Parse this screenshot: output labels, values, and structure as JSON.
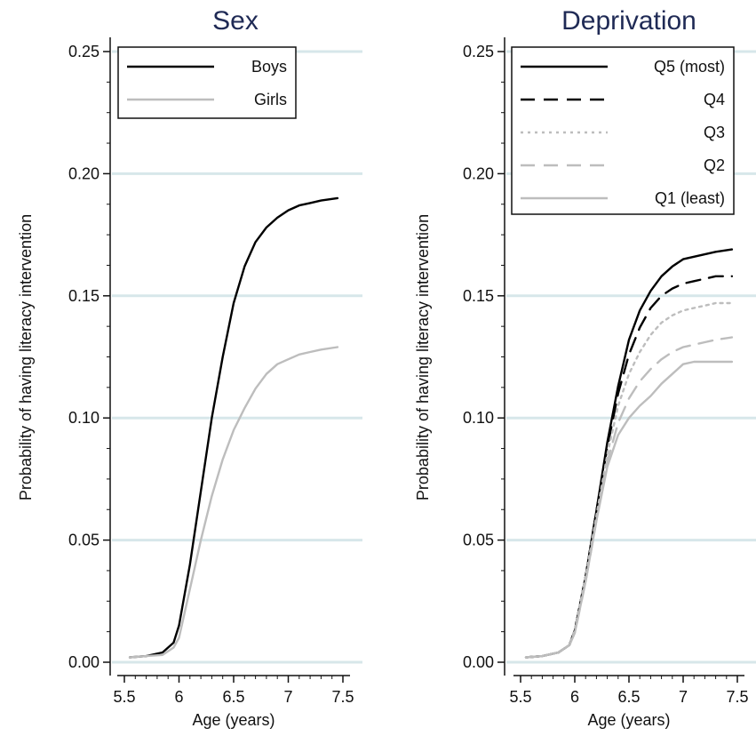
{
  "colors": {
    "title": "#1f2a55",
    "grid": "#d7e7ea",
    "axis": "#111111",
    "black": "#000000",
    "gray": "#bdbdbd"
  },
  "chart_data": [
    {
      "type": "line",
      "title": "Sex",
      "xlabel": "Age (years)",
      "ylabel": "Probability of having literacy intervention",
      "xlim": [
        5.5,
        7.5
      ],
      "ylim": [
        0,
        0.25
      ],
      "xticks": [
        "5.5",
        "6",
        "6.5",
        "7",
        "7.5"
      ],
      "yticks": [
        "0.00",
        "0.05",
        "0.10",
        "0.15",
        "0.20",
        "0.25"
      ],
      "grid": true,
      "legend": "top-left",
      "series": [
        {
          "name": "Boys",
          "color": "#000000",
          "style": "solid",
          "x": [
            5.55,
            5.7,
            5.85,
            5.95,
            6.0,
            6.1,
            6.2,
            6.3,
            6.4,
            6.5,
            6.6,
            6.7,
            6.8,
            6.9,
            7.0,
            7.1,
            7.2,
            7.3,
            7.45
          ],
          "y": [
            0.002,
            0.0025,
            0.004,
            0.008,
            0.015,
            0.04,
            0.07,
            0.1,
            0.125,
            0.147,
            0.162,
            0.172,
            0.178,
            0.182,
            0.185,
            0.187,
            0.188,
            0.189,
            0.19
          ]
        },
        {
          "name": "Girls",
          "color": "#bdbdbd",
          "style": "solid",
          "x": [
            5.55,
            5.7,
            5.85,
            5.95,
            6.0,
            6.1,
            6.2,
            6.3,
            6.4,
            6.5,
            6.6,
            6.7,
            6.8,
            6.9,
            7.0,
            7.1,
            7.2,
            7.3,
            7.45
          ],
          "y": [
            0.002,
            0.0025,
            0.003,
            0.006,
            0.01,
            0.03,
            0.05,
            0.068,
            0.083,
            0.095,
            0.104,
            0.112,
            0.118,
            0.122,
            0.124,
            0.126,
            0.127,
            0.128,
            0.129
          ]
        }
      ]
    },
    {
      "type": "line",
      "title": "Deprivation",
      "xlabel": "Age (years)",
      "ylabel": "Probability of having literacy intervention",
      "xlim": [
        5.5,
        7.5
      ],
      "ylim": [
        0,
        0.25
      ],
      "xticks": [
        "5.5",
        "6",
        "6.5",
        "7",
        "7.5"
      ],
      "yticks": [
        "0.00",
        "0.05",
        "0.10",
        "0.15",
        "0.20",
        "0.25"
      ],
      "grid": true,
      "legend": "top-right",
      "series": [
        {
          "name": "Q5 (most)",
          "color": "#000000",
          "style": "solid",
          "x": [
            5.55,
            5.7,
            5.85,
            5.95,
            6.0,
            6.1,
            6.2,
            6.3,
            6.4,
            6.5,
            6.6,
            6.7,
            6.8,
            6.9,
            7.0,
            7.1,
            7.2,
            7.3,
            7.45
          ],
          "y": [
            0.002,
            0.0025,
            0.004,
            0.007,
            0.013,
            0.035,
            0.062,
            0.09,
            0.113,
            0.132,
            0.144,
            0.152,
            0.158,
            0.162,
            0.165,
            0.166,
            0.167,
            0.168,
            0.169
          ]
        },
        {
          "name": "Q4",
          "color": "#000000",
          "style": "dash",
          "x": [
            5.55,
            5.7,
            5.85,
            5.95,
            6.0,
            6.1,
            6.2,
            6.3,
            6.4,
            6.5,
            6.6,
            6.7,
            6.8,
            6.9,
            7.0,
            7.1,
            7.2,
            7.3,
            7.45
          ],
          "y": [
            0.002,
            0.0025,
            0.004,
            0.007,
            0.013,
            0.035,
            0.062,
            0.088,
            0.11,
            0.126,
            0.137,
            0.145,
            0.15,
            0.153,
            0.155,
            0.156,
            0.157,
            0.158,
            0.158
          ]
        },
        {
          "name": "Q3",
          "color": "#bdbdbd",
          "style": "dot",
          "x": [
            5.55,
            5.7,
            5.85,
            5.95,
            6.0,
            6.1,
            6.2,
            6.3,
            6.4,
            6.5,
            6.6,
            6.7,
            6.8,
            6.9,
            7.0,
            7.1,
            7.2,
            7.3,
            7.45
          ],
          "y": [
            0.002,
            0.0025,
            0.004,
            0.007,
            0.013,
            0.035,
            0.06,
            0.085,
            0.105,
            0.118,
            0.127,
            0.134,
            0.139,
            0.142,
            0.144,
            0.145,
            0.146,
            0.147,
            0.147
          ]
        },
        {
          "name": "Q2",
          "color": "#bdbdbd",
          "style": "dash",
          "x": [
            5.55,
            5.7,
            5.85,
            5.95,
            6.0,
            6.1,
            6.2,
            6.3,
            6.4,
            6.5,
            6.6,
            6.7,
            6.8,
            6.9,
            7.0,
            7.1,
            7.2,
            7.3,
            7.45
          ],
          "y": [
            0.002,
            0.0025,
            0.004,
            0.007,
            0.012,
            0.033,
            0.058,
            0.082,
            0.098,
            0.108,
            0.115,
            0.12,
            0.124,
            0.127,
            0.129,
            0.13,
            0.131,
            0.132,
            0.133
          ]
        },
        {
          "name": "Q1 (least)",
          "color": "#bdbdbd",
          "style": "solid",
          "x": [
            5.55,
            5.7,
            5.85,
            5.95,
            6.0,
            6.1,
            6.2,
            6.3,
            6.4,
            6.5,
            6.6,
            6.7,
            6.8,
            6.9,
            7.0,
            7.1,
            7.2,
            7.3,
            7.45
          ],
          "y": [
            0.002,
            0.0025,
            0.004,
            0.007,
            0.012,
            0.033,
            0.058,
            0.08,
            0.093,
            0.1,
            0.105,
            0.109,
            0.114,
            0.118,
            0.122,
            0.123,
            0.123,
            0.123,
            0.123
          ]
        }
      ]
    }
  ]
}
